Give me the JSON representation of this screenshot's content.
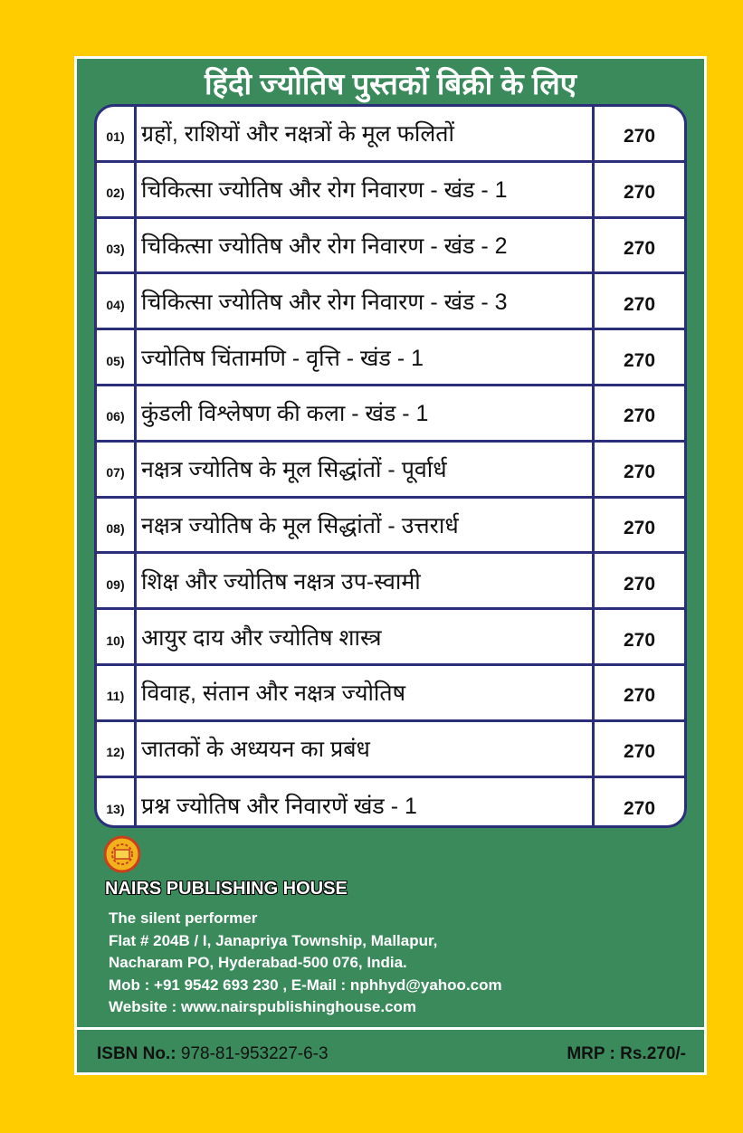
{
  "title": "हिंदी ज्योतिष पुस्तकों बिक्री के लिए",
  "books": [
    {
      "no": "01)",
      "name": "ग्रहों, राशियों और नक्षत्रों के मूल फलितों",
      "price": "270"
    },
    {
      "no": "02)",
      "name": "चिकित्सा ज्योतिष और रोग निवारण - खंड - 1",
      "price": "270"
    },
    {
      "no": "03)",
      "name": "चिकित्सा ज्योतिष और रोग निवारण - खंड - 2",
      "price": "270"
    },
    {
      "no": "04)",
      "name": "चिकित्सा ज्योतिष और रोग निवारण - खंड - 3",
      "price": "270"
    },
    {
      "no": "05)",
      "name": "ज्योतिष चिंतामणि - वृत्ति - खंड - 1",
      "price": "270"
    },
    {
      "no": "06)",
      "name": "कुंडली विश्लेषण की कला -  खंड - 1",
      "price": "270"
    },
    {
      "no": "07)",
      "name": "नक्षत्र ज्योतिष के मूल सिद्धांतों - पूर्वार्ध",
      "price": "270"
    },
    {
      "no": "08)",
      "name": "नक्षत्र ज्योतिष के मूल सिद्धांतों - उत्तरार्ध",
      "price": "270"
    },
    {
      "no": "09)",
      "name": "शिक्ष और ज्योतिष नक्षत्र उप-स्वामी",
      "price": "270"
    },
    {
      "no": "10)",
      "name": "आयुर दाय और ज्योतिष शास्त्र",
      "price": "270"
    },
    {
      "no": "11)",
      "name": "विवाह, संतान और नक्षत्र ज्योतिष",
      "price": "270"
    },
    {
      "no": "12)",
      "name": "जातकों के अध्ययन का प्रबंध",
      "price": "270"
    },
    {
      "no": "13)",
      "name": "प्रश्न ज्योतिष और निवारणें खंड - 1",
      "price": "270"
    }
  ],
  "publisher": {
    "logo_text": "NAIRS PUBLISHING HOUSE",
    "name": "NAIRS PUBLISHING HOUSE",
    "tagline": "The silent performer",
    "address1": "Flat # 204B / I,  Janapriya Township, Mallapur,",
    "address2": "Nacharam PO, Hyderabad-500 076, India.",
    "contact": "Mob : +91 9542 693 230 , E-Mail : nphhyd@yahoo.com",
    "website": "Website : www.nairspublishinghouse.com"
  },
  "footer": {
    "isbn_label": "ISBN No.:",
    "isbn_value": " 978-81-953227-6-3",
    "mrp": "MRP : Rs.270/-"
  },
  "colors": {
    "background": "#FFCC00",
    "panel": "#3B8A5C",
    "table_border": "#2B2F7A"
  }
}
